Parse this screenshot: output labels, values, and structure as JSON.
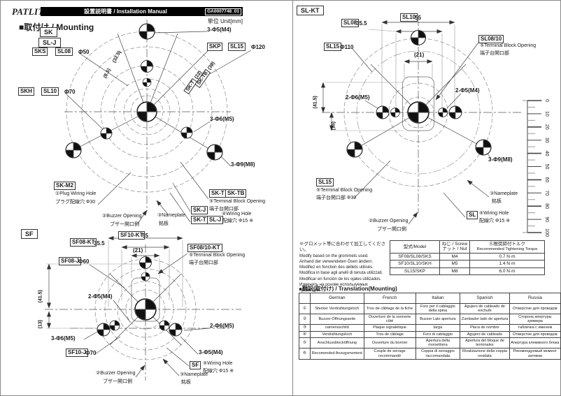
{
  "header": {
    "logo": "PATLITE.",
    "manual_title": "設置説明書 / Installation Manual",
    "doc_code": "GA0007748_01",
    "unit_note": "単位 Unit[mm]"
  },
  "section_title": "■取付け / Mounting",
  "sk_diagram": {
    "model_tags": {
      "sk": "SK",
      "sl_j": "SL-J",
      "sks": "SKS",
      "sl08": "SL08",
      "skh": "SKH",
      "sl10": "SL10",
      "skp": "SKP",
      "sl15": "SL15",
      "sk_m2": "SK-M2",
      "sk_t": "SK-T",
      "sk_tb": "SK-TB",
      "sk_j": "SK-J",
      "sk_t2": "SK-T",
      "sl_j2": "SL-J",
      "sk_t_rot": "SK-T",
      "sk_tb_rot": "SK-TB"
    },
    "dims": {
      "d50": "Φ50",
      "d70": "Φ70",
      "d120": "Φ120",
      "r325": "(32.5)",
      "r85": "(8.5)",
      "r22": "(22)",
      "r30": "(30)",
      "holes_top": "3-Φ5(M4)",
      "holes_mid": "3-Φ6(M5)",
      "holes_outer": "3-Φ9(M8)"
    },
    "callouts": {
      "plug_en": "①Plug Wiring Hole",
      "plug_jp": "プラグ配線穴 Φ30",
      "buzzer_en": "②Buzzer Opening",
      "buzzer_jp": "ブザー開口側",
      "nameplate_en": "③Nameplate",
      "nameplate_jp": "銘板",
      "terminal_en": "⑤Terminal Block Opening",
      "terminal_jp": "端子台開口部",
      "wiring_en": "④Wiring Hole",
      "wiring_jp": "配線穴 Φ15 ※"
    }
  },
  "sf_diagram": {
    "model_tags": {
      "sf": "SF",
      "sf10_kt": "SF10-KT",
      "sf08_kt": "SF08-KT",
      "sf0810_kt": "SF08/10-KT",
      "sf08_j": "SF08-J",
      "sf10_j": "SF10-J",
      "sf2": "SF"
    },
    "dims": {
      "d55": "55",
      "d355": "35.5",
      "d21": "(21)",
      "d60": "Φ60",
      "d70": "Φ70",
      "d415": "(41.5)",
      "d13": "(13)",
      "holes_2m4": "2-Φ5(M4)",
      "holes_3m5": "3-Φ6(M5)",
      "holes_2m5": "2-Φ6(M5)",
      "holes_3m4": "3-Φ5(M4)"
    },
    "callouts": {
      "terminal_en": "⑤Terminal Block Opening",
      "terminal_jp": "端子台開口部",
      "buzzer_en": "②Buzzer Opening",
      "buzzer_jp": "ブザー開口側",
      "wiring_en": "④Wiring Hole",
      "wiring_jp": "配線穴 Φ15 ※",
      "nameplate_en": "③Nameplate",
      "nameplate_jp": "銘板"
    }
  },
  "sl_diagram": {
    "model_tags": {
      "sl_kt": "SL-KT",
      "sl10": "SL10",
      "sl08": "SL08",
      "sl15": "SL15",
      "sl0810": "SL08/10",
      "sl15b": "SL15",
      "sl": "SL"
    },
    "dims": {
      "d55": "55",
      "d355": "35.5",
      "d110": "Φ110",
      "d21": "(21)",
      "d415": "(41.5)",
      "d13": "(13)",
      "holes_2m5": "2-Φ6(M5)",
      "holes_2m4": "2-Φ5(M4)",
      "holes_3m8": "3-Φ9(M8)"
    },
    "callouts": {
      "terminal_top_en": "⑤Terminal Block Opening",
      "terminal_top_jp": "端子台開口部",
      "terminal_bot_en": "⑤Terminal Block Opening",
      "terminal_bot_jp": "端子台開口部 Φ30",
      "buzzer_en": "②Buzzer Opening",
      "buzzer_jp": "ブザー開口側",
      "nameplate_en": "③Nameplate",
      "nameplate_jp": "銘板",
      "wiring_en": "④Wiring Hole",
      "wiring_jp": "配線穴 Φ15 ※"
    }
  },
  "ruler": {
    "labels": [
      "0",
      "10",
      "20",
      "30",
      "40",
      "50",
      "60",
      "70",
      "80",
      "90",
      "100"
    ]
  },
  "grommet_notes": {
    "lines": [
      "※グロメット等に合わせて加工してください。",
      "Modify based on the grommets used.",
      "Anhand der verwendeten Ösen ändern.",
      "Modifiez en fonction des œillets utilisés.",
      "Modifica in base agli anelli di tenuta utilizzati.",
      "Modificar en función de los ojales utilizados.",
      "Изменять на основе используемых прокладок."
    ]
  },
  "torque_table": {
    "col_model": "型式/Model",
    "col_screw_1": "ねじ / Screw",
    "col_screw_2": "ナット / Nut",
    "col_torque_1": "⑥推奨締付トルク",
    "col_torque_2": "Recommended Tightening Torque",
    "rows": [
      {
        "model": "SF08/SL08/SKS",
        "screw": "M4",
        "torque": "0.7 N·m"
      },
      {
        "model": "SF10/SL10/SKH",
        "screw": "M5",
        "torque": "1.4 N·m"
      },
      {
        "model": "SL15/SKP",
        "screw": "M8",
        "torque": "6.0 N·m"
      }
    ]
  },
  "translation_table": {
    "title": "●翻訳(取付け) / Translation(Mounting)",
    "headers": [
      "German",
      "French",
      "Italian",
      "Spanish",
      "Russia"
    ],
    "rows": [
      {
        "num": "①",
        "cells": [
          "Stecker Verdrahtungsloch",
          "Trou de câblage de la fiche",
          "Foro per il cablaggio della spina",
          "Agujero de cableado de enchufe",
          "Отверстие для проводов"
        ]
      },
      {
        "num": "②",
        "cells": [
          "Buzzer-Öffnungsseite",
          "Ouverture de la sonnerie côté",
          "Buzzer Lato apertura",
          "Zumbador lado de apertura",
          "Сторона апертуры зуммера"
        ]
      },
      {
        "num": "③",
        "cells": [
          "namensschild",
          "Plaque signalétique",
          "targa",
          "Placa de nombre",
          "табличка с именем"
        ]
      },
      {
        "num": "④",
        "cells": [
          "Verdrahtungsloch",
          "Trou de câblage",
          "Foro di cablaggio",
          "Agujero de cableado",
          "Отверстие для проводов"
        ]
      },
      {
        "num": "⑤",
        "cells": [
          "Anschlussblocköffnung",
          "Ouverture du bornier",
          "Apertura della morsettiera",
          "Apertura del bloque de terminales",
          "Апертура клеммного блока"
        ]
      },
      {
        "num": "⑥",
        "cells": [
          "Recomended Anzugsmoment",
          "Couple de serrage recommandé",
          "Coppia di serraggio raccomandata",
          "Rivalutazione della coppia residata",
          "Рекомендуемый момент затяжки"
        ]
      }
    ]
  }
}
